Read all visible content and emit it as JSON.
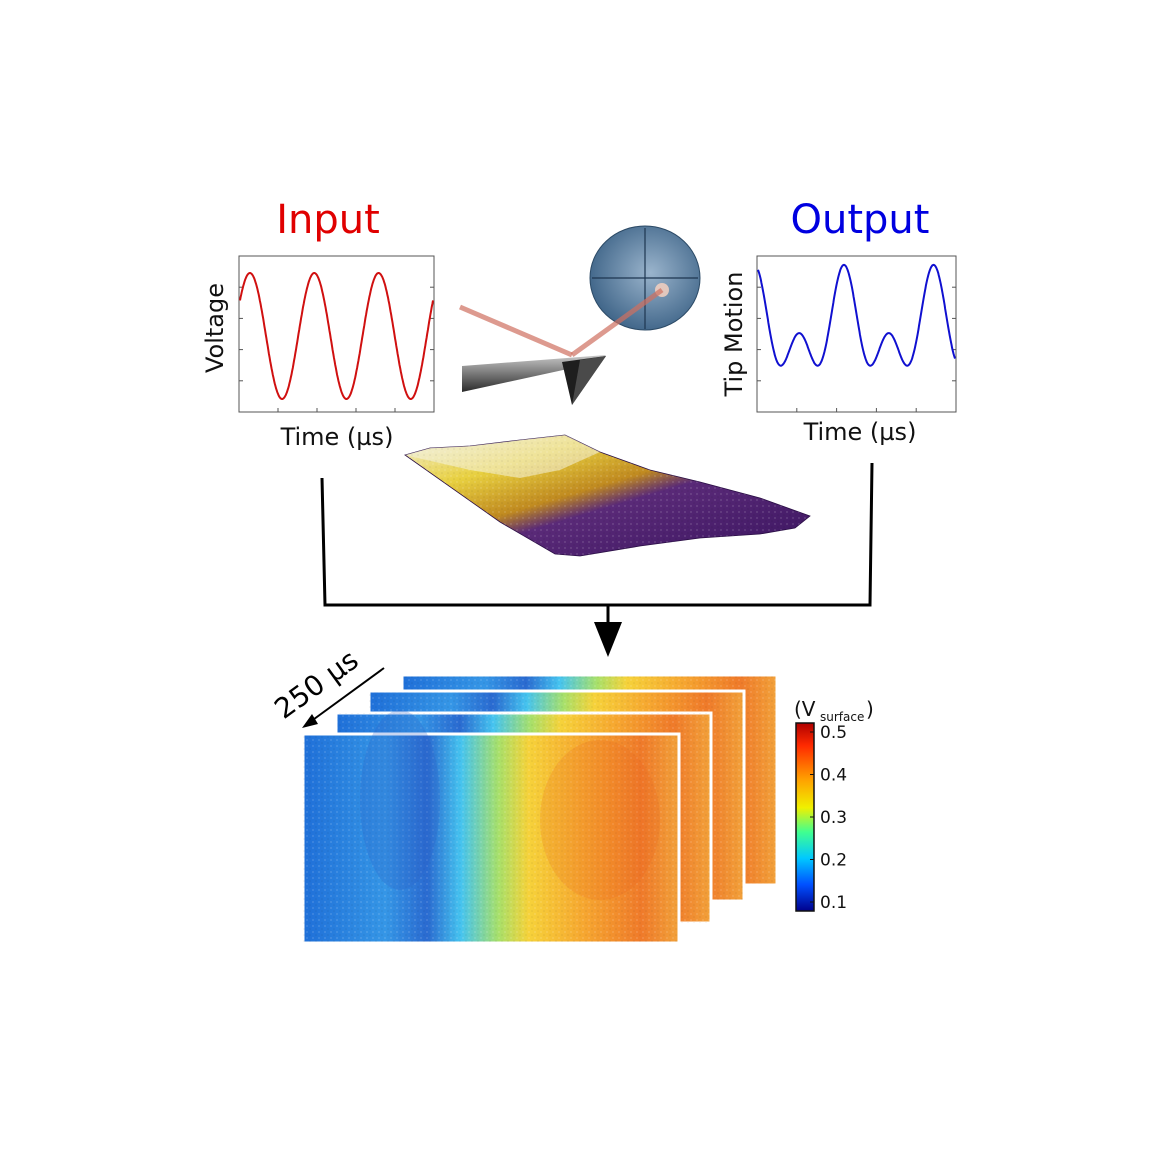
{
  "input_panel": {
    "title": "Input",
    "ylabel": "Voltage",
    "xlabel": "Time (µs)",
    "title_color": "#e00000",
    "line_color": "#d01010",
    "waveform": "sine",
    "cycles": 3
  },
  "output_panel": {
    "title": "Output",
    "ylabel": "Tip Motion",
    "xlabel": "Time (µs)",
    "title_color": "#0000e0",
    "line_color": "#1010d0",
    "waveform": "sine-plus-second-harmonic"
  },
  "illustrations": {
    "cantilever": "afm-cantilever-with-laser",
    "photodetector": "quadrant-photodiode",
    "surface": "3d-surface-topography"
  },
  "time_step": {
    "label": "250 µs"
  },
  "image_stack": {
    "frames": 4,
    "colormap": "jet"
  },
  "colorbar": {
    "title_prefix": "(V",
    "title_sub": "surface",
    "title_suffix": ")",
    "ticks": [
      "0.5",
      "0.4",
      "0.3",
      "0.2",
      "0.1"
    ],
    "min": 0.1,
    "max": 0.5
  }
}
